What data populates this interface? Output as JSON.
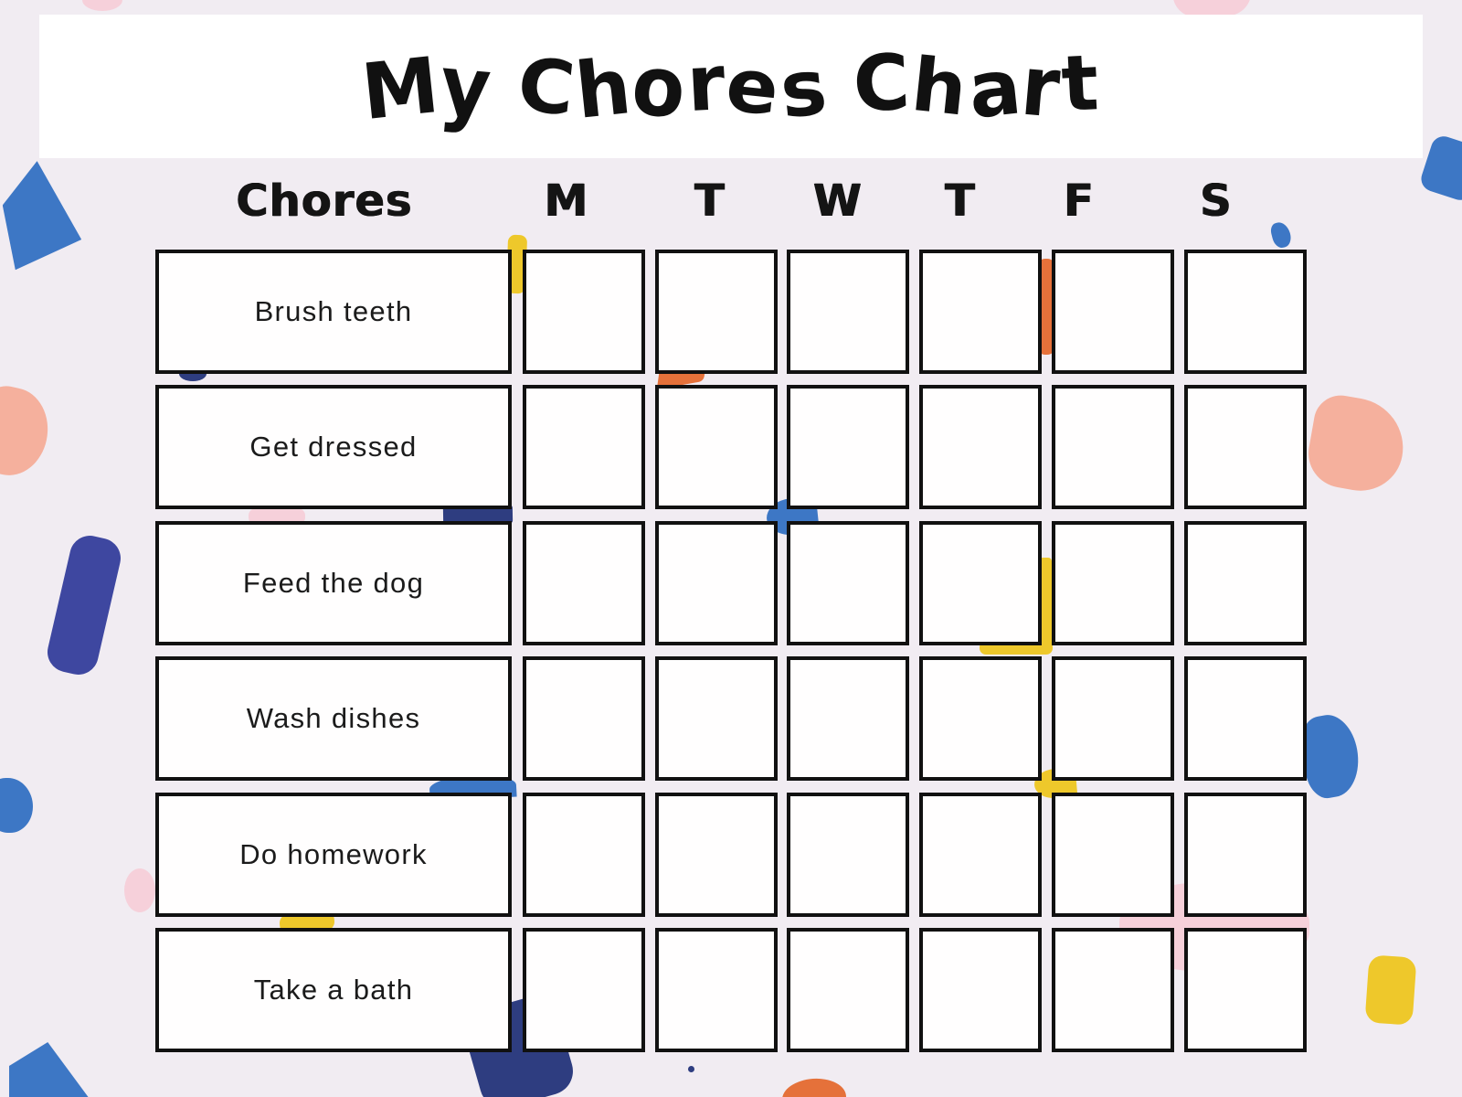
{
  "title": "My Chores Chart",
  "header": {
    "chores_label": "Chores",
    "days": [
      "M",
      "T",
      "W",
      "T",
      "F",
      "S"
    ]
  },
  "chores": [
    "Brush teeth",
    "Get dressed",
    "Feed the dog",
    "Wash dishes",
    "Do homework",
    "Take a bath"
  ],
  "grid": {
    "rows": 6,
    "day_columns": 6,
    "cell_state": "empty"
  },
  "colors": {
    "bg": "#f1ecf2",
    "blue": "#3d77c5",
    "navy": "#3e47a0",
    "navyDark": "#2e3d80",
    "orange": "#e5713a",
    "yellow": "#eec82b",
    "salmon": "#f5b09d",
    "lightPink": "#f6d0da"
  }
}
